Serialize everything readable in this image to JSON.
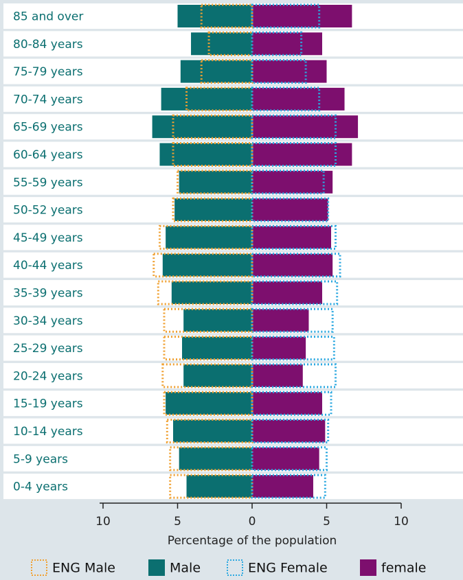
{
  "chart_data": {
    "type": "pyramid",
    "categories": [
      "85 and over",
      "80-84 years",
      "75-79 years",
      "70-74 years",
      "65-69 years",
      "60-64 years",
      "55-59 years",
      "50-52 years",
      "45-49 years",
      "40-44 years",
      "35-39 years",
      "30-34 years",
      "25-29 years",
      "20-24 years",
      "15-19 years",
      "10-14 years",
      "5-9 years",
      "0-4 years"
    ],
    "series": [
      {
        "name": "ENG Male",
        "color": "#f0a030",
        "style": "outline",
        "side": "left",
        "values": [
          3.4,
          2.9,
          3.4,
          4.4,
          5.3,
          5.3,
          5.0,
          5.3,
          6.2,
          6.6,
          6.3,
          5.9,
          5.9,
          6.0,
          5.9,
          5.7,
          5.5,
          5.5
        ]
      },
      {
        "name": "Male",
        "color": "#0b6f70",
        "style": "filled",
        "side": "left",
        "values": [
          5.0,
          4.1,
          4.8,
          6.1,
          6.7,
          6.2,
          4.9,
          5.2,
          5.8,
          6.0,
          5.4,
          4.6,
          4.7,
          4.6,
          5.8,
          5.3,
          4.9,
          4.4
        ]
      },
      {
        "name": "ENG Female",
        "color": "#2aa8e0",
        "style": "outline",
        "side": "right",
        "values": [
          4.5,
          3.3,
          3.6,
          4.5,
          5.6,
          5.6,
          4.8,
          5.1,
          5.6,
          5.9,
          5.7,
          5.4,
          5.5,
          5.6,
          5.3,
          5.1,
          5.0,
          4.9
        ]
      },
      {
        "name": "female",
        "color": "#7d0f6e",
        "style": "filled",
        "side": "right",
        "values": [
          6.7,
          4.7,
          5.0,
          6.2,
          7.1,
          6.7,
          5.4,
          5.1,
          5.3,
          5.4,
          4.7,
          3.8,
          3.6,
          3.4,
          4.7,
          4.9,
          4.5,
          4.1
        ]
      }
    ],
    "xlabel": "Percentage of the population",
    "xlim": [
      -10,
      10
    ],
    "xticks": [
      {
        "value": -10,
        "label": "10"
      },
      {
        "value": -5,
        "label": "5"
      },
      0,
      5,
      10
    ]
  }
}
